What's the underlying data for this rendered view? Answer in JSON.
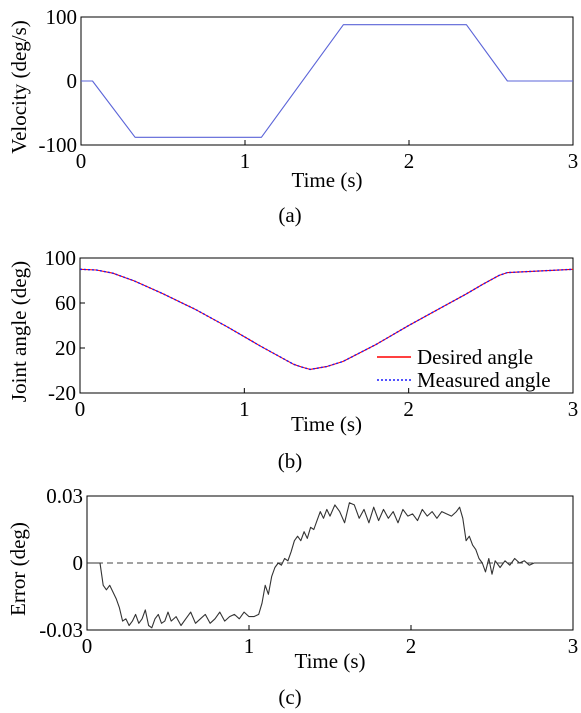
{
  "chart_data": [
    {
      "type": "line",
      "caption": "(a)",
      "xlabel": "Time (s)",
      "ylabel": "Velocity (deg/s)",
      "xlim": [
        0,
        3
      ],
      "ylim": [
        -100,
        100
      ],
      "xticks": [
        "0",
        "1",
        "2",
        "3"
      ],
      "yticks": [
        "-100",
        "0",
        "100"
      ],
      "grid": false,
      "series": [
        {
          "color": "#5b64d8",
          "x": [
            0,
            0.07,
            0.33,
            1.1,
            1.6,
            2.35,
            2.6,
            3.0
          ],
          "y": [
            0,
            0,
            -88,
            -88,
            88,
            88,
            0,
            0
          ]
        }
      ]
    },
    {
      "type": "line",
      "caption": "(b)",
      "xlabel": "Time (s)",
      "ylabel": "Joint angle (deg)",
      "xlim": [
        0,
        3
      ],
      "ylim": [
        -20,
        100
      ],
      "xticks": [
        "0",
        "1",
        "2",
        "3"
      ],
      "yticks": [
        "-20",
        "20",
        "60",
        "100"
      ],
      "grid": false,
      "legend_position": "bottom-right",
      "series": [
        {
          "name": "Desired angle",
          "color": "#ff0000",
          "style": "solid",
          "x": [
            0,
            0.1,
            0.2,
            0.33,
            0.5,
            0.7,
            0.9,
            1.1,
            1.2,
            1.3,
            1.35,
            1.4,
            1.5,
            1.6,
            1.8,
            2.0,
            2.2,
            2.35,
            2.45,
            2.55,
            2.6,
            3.0
          ],
          "y": [
            90,
            89.3,
            86.5,
            79.6,
            68.5,
            54.5,
            38.5,
            21.5,
            13.5,
            5.5,
            3,
            1,
            3.5,
            8,
            23,
            40,
            56,
            68,
            76.5,
            84.5,
            87,
            90
          ]
        },
        {
          "name": "Measured angle",
          "color": "#1a1aff",
          "style": "dotted",
          "x": [
            0,
            0.1,
            0.2,
            0.33,
            0.5,
            0.7,
            0.9,
            1.1,
            1.2,
            1.3,
            1.35,
            1.4,
            1.5,
            1.6,
            1.8,
            2.0,
            2.2,
            2.35,
            2.45,
            2.55,
            2.6,
            3.0
          ],
          "y": [
            90,
            89.3,
            86.5,
            79.6,
            68.5,
            54.5,
            38.5,
            21.5,
            13.5,
            5.5,
            3,
            1,
            3.5,
            8,
            23,
            40,
            56,
            68,
            76.5,
            84.5,
            87,
            90
          ]
        }
      ]
    },
    {
      "type": "line",
      "caption": "(c)",
      "xlabel": "Time (s)",
      "ylabel": "Error (deg)",
      "xlim": [
        0,
        3
      ],
      "ylim": [
        -0.03,
        0.03
      ],
      "xticks": [
        "0",
        "1",
        "2",
        "3"
      ],
      "yticks": [
        "-0.03",
        "0",
        "0.03"
      ],
      "grid": false,
      "reference_line": {
        "y": 0,
        "style": "dashed",
        "color": "#444444"
      },
      "series": [
        {
          "color": "#333333",
          "x": [
            0,
            0.08,
            0.1,
            0.12,
            0.14,
            0.18,
            0.2,
            0.22,
            0.24,
            0.26,
            0.28,
            0.3,
            0.32,
            0.34,
            0.36,
            0.38,
            0.4,
            0.42,
            0.44,
            0.46,
            0.48,
            0.5,
            0.52,
            0.55,
            0.58,
            0.61,
            0.64,
            0.67,
            0.7,
            0.73,
            0.76,
            0.79,
            0.82,
            0.85,
            0.88,
            0.91,
            0.94,
            0.97,
            1.0,
            1.03,
            1.06,
            1.08,
            1.1,
            1.12,
            1.14,
            1.16,
            1.18,
            1.2,
            1.22,
            1.24,
            1.26,
            1.28,
            1.3,
            1.32,
            1.34,
            1.36,
            1.38,
            1.4,
            1.42,
            1.44,
            1.46,
            1.48,
            1.5,
            1.53,
            1.56,
            1.59,
            1.62,
            1.65,
            1.68,
            1.71,
            1.74,
            1.77,
            1.8,
            1.83,
            1.86,
            1.89,
            1.92,
            1.95,
            1.98,
            2.01,
            2.04,
            2.07,
            2.1,
            2.13,
            2.16,
            2.19,
            2.22,
            2.25,
            2.28,
            2.3,
            2.32,
            2.34,
            2.36,
            2.38,
            2.4,
            2.42,
            2.44,
            2.46,
            2.48,
            2.5,
            2.52,
            2.55,
            2.58,
            2.61,
            2.64,
            2.67,
            2.7,
            2.73,
            2.76,
            2.8,
            2.85,
            2.9,
            2.95,
            3.0
          ],
          "y": [
            0,
            0,
            -0.01,
            -0.012,
            -0.01,
            -0.016,
            -0.02,
            -0.026,
            -0.025,
            -0.028,
            -0.026,
            -0.023,
            -0.027,
            -0.025,
            -0.021,
            -0.028,
            -0.029,
            -0.025,
            -0.023,
            -0.027,
            -0.026,
            -0.022,
            -0.026,
            -0.024,
            -0.028,
            -0.025,
            -0.022,
            -0.027,
            -0.025,
            -0.023,
            -0.027,
            -0.025,
            -0.022,
            -0.026,
            -0.024,
            -0.023,
            -0.025,
            -0.022,
            -0.024,
            -0.024,
            -0.023,
            -0.018,
            -0.01,
            -0.014,
            -0.006,
            -0.002,
            0,
            -0.001,
            0.002,
            0.001,
            0.005,
            0.01,
            0.012,
            0.01,
            0.014,
            0.011,
            0.016,
            0.015,
            0.019,
            0.023,
            0.02,
            0.024,
            0.021,
            0.026,
            0.023,
            0.018,
            0.027,
            0.026,
            0.02,
            0.024,
            0.018,
            0.025,
            0.019,
            0.024,
            0.02,
            0.023,
            0.018,
            0.024,
            0.021,
            0.022,
            0.019,
            0.024,
            0.021,
            0.023,
            0.02,
            0.023,
            0.022,
            0.021,
            0.023,
            0.025,
            0.02,
            0.01,
            0.012,
            0.008,
            0.006,
            0.002,
            0,
            -0.004,
            0.002,
            -0.005,
            0.001,
            -0.002,
            0.001,
            -0.001,
            0.002,
            0,
            0.001,
            -0.001,
            0,
            0,
            0,
            0,
            0,
            0
          ]
        }
      ]
    }
  ]
}
